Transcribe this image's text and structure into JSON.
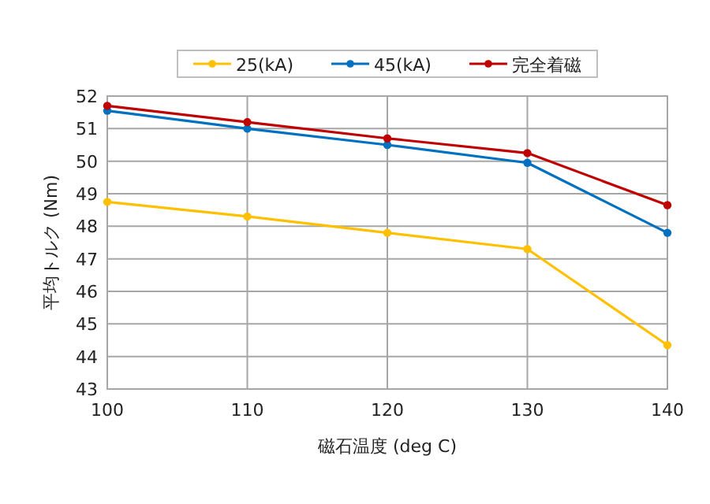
{
  "chart_data": {
    "type": "line",
    "xlabel": "磁石温度 (deg C)",
    "ylabel": "平均トルク (Nm)",
    "x": [
      100,
      110,
      120,
      130,
      140
    ],
    "series": [
      {
        "name": "25(kA)",
        "color": "#ffc000",
        "values": [
          48.75,
          48.3,
          47.8,
          47.3,
          44.35
        ]
      },
      {
        "name": "45(kA)",
        "color": "#0070c0",
        "values": [
          51.55,
          51.0,
          50.5,
          49.95,
          47.8
        ]
      },
      {
        "name": "完全着磁",
        "color": "#c00000",
        "values": [
          51.7,
          51.2,
          50.7,
          50.25,
          48.65
        ]
      }
    ],
    "xlim": [
      100,
      140
    ],
    "xticks": [
      100,
      110,
      120,
      130,
      140
    ],
    "ylim": [
      43,
      52
    ],
    "yticks": [
      43,
      44,
      45,
      46,
      47,
      48,
      49,
      50,
      51,
      52
    ],
    "grid": true,
    "legend": "top",
    "marker": "circle",
    "line_style": "solid"
  }
}
